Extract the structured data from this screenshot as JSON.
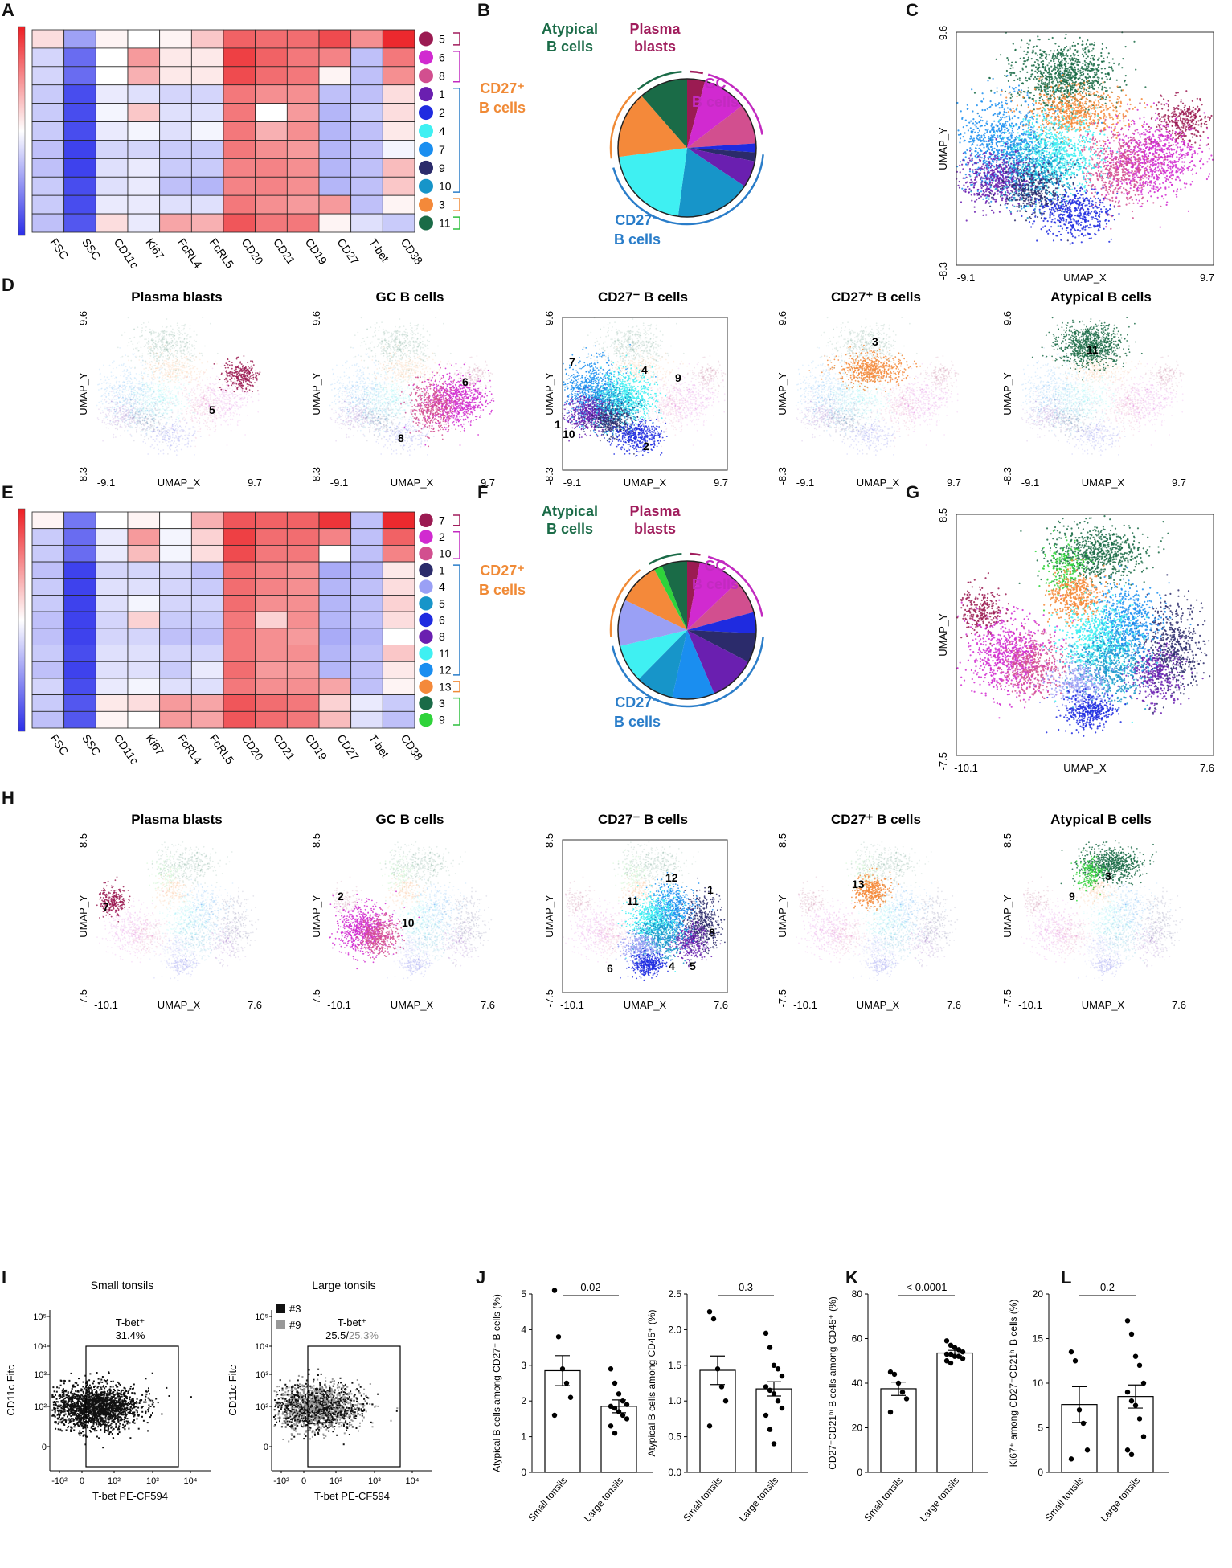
{
  "figure": {
    "panel_letters": [
      "A",
      "B",
      "C",
      "D",
      "E",
      "F",
      "G",
      "H",
      "I",
      "J",
      "K",
      "L"
    ],
    "markers": [
      "FSC",
      "SSC",
      "CD11c",
      "Ki67",
      "FcRL4",
      "FcRL5",
      "CD20",
      "CD21",
      "CD19",
      "CD27",
      "T-bet",
      "CD38"
    ],
    "colors": {
      "plasma": "#9b1b52",
      "gc": "#cc2bc7",
      "cd27neg": "#2a7dc9",
      "cd27pos": "#f4893a",
      "atypical": "#1a6b47",
      "atypical2": "#2fd33a",
      "text_plasma": "#a01c5c",
      "text_gc": "#c22ac0",
      "text_cd27neg": "#2a7dc9",
      "text_cd27pos": "#f08a36",
      "text_atyp": "#1a6b47"
    },
    "umap_x_label": "UMAP_X",
    "umap_y_label": "UMAP_Y"
  },
  "panelA": {
    "clusters": [
      {
        "id": "5",
        "color": "#9b1b52"
      },
      {
        "id": "6",
        "color": "#d12ad0"
      },
      {
        "id": "8",
        "color": "#d24f8f"
      },
      {
        "id": "1",
        "color": "#6a1fb0"
      },
      {
        "id": "2",
        "color": "#1f2be0"
      },
      {
        "id": "4",
        "color": "#3ff0f2"
      },
      {
        "id": "7",
        "color": "#1a8ef0"
      },
      {
        "id": "9",
        "color": "#2b2b6b"
      },
      {
        "id": "10",
        "color": "#1795c9"
      },
      {
        "id": "3",
        "color": "#f4893a"
      },
      {
        "id": "11",
        "color": "#1a6b47"
      }
    ],
    "heat": [
      [
        0.15,
        -0.45,
        0.05,
        0.0,
        0.05,
        0.25,
        0.7,
        0.65,
        0.65,
        0.8,
        0.5,
        0.95
      ],
      [
        -0.2,
        -0.7,
        0.0,
        0.45,
        0.1,
        0.1,
        0.85,
        0.7,
        0.6,
        0.55,
        -0.3,
        0.6
      ],
      [
        -0.2,
        -0.7,
        0.0,
        0.35,
        0.1,
        0.1,
        0.8,
        0.65,
        0.6,
        0.05,
        -0.3,
        0.5
      ],
      [
        -0.25,
        -0.85,
        -0.1,
        -0.15,
        -0.2,
        -0.2,
        0.6,
        0.5,
        0.5,
        -0.3,
        -0.3,
        0.15
      ],
      [
        -0.25,
        -0.85,
        -0.05,
        0.25,
        -0.15,
        -0.15,
        0.6,
        0.0,
        0.45,
        -0.35,
        -0.25,
        0.15
      ],
      [
        -0.25,
        -0.85,
        -0.1,
        -0.05,
        -0.15,
        -0.05,
        0.6,
        0.35,
        0.5,
        -0.35,
        -0.3,
        0.1
      ],
      [
        -0.3,
        -0.9,
        -0.2,
        -0.2,
        -0.25,
        -0.25,
        0.6,
        0.5,
        0.45,
        -0.35,
        -0.3,
        -0.05
      ],
      [
        -0.3,
        -0.9,
        -0.15,
        -0.1,
        -0.25,
        -0.25,
        0.55,
        0.55,
        0.5,
        -0.35,
        -0.3,
        0.3
      ],
      [
        -0.25,
        -0.85,
        -0.15,
        -0.1,
        -0.3,
        -0.35,
        0.55,
        0.55,
        0.5,
        -0.35,
        -0.3,
        0.25
      ],
      [
        -0.25,
        -0.85,
        -0.1,
        -0.1,
        -0.15,
        -0.15,
        0.6,
        0.5,
        0.45,
        0.45,
        -0.3,
        0.05
      ],
      [
        -0.3,
        -0.8,
        0.15,
        -0.1,
        0.4,
        0.35,
        0.75,
        0.6,
        0.6,
        0.05,
        -0.15,
        -0.25
      ]
    ],
    "brackets": [
      {
        "from": 0,
        "to": 0,
        "color": "#a01c5c"
      },
      {
        "from": 1,
        "to": 2,
        "color": "#c22ac0"
      },
      {
        "from": 3,
        "to": 8,
        "color": "#2a7dc9"
      },
      {
        "from": 9,
        "to": 9,
        "color": "#f08a36"
      },
      {
        "from": 10,
        "to": 10,
        "color": "#2fbf3f"
      }
    ]
  },
  "panelB": {
    "labels": [
      {
        "text": "Atypical",
        "color": "#1a6b47"
      },
      {
        "text": "B cells",
        "color": "#1a6b47"
      },
      {
        "text": "Plasma",
        "color": "#a01c5c"
      },
      {
        "text": "blasts",
        "color": "#a01c5c"
      },
      {
        "text": "GC",
        "color": "#c22ac0"
      },
      {
        "text": "B cells",
        "color": "#c22ac0"
      },
      {
        "text": "CD27⁺",
        "color": "#f08a36"
      },
      {
        "text": "B cells",
        "color": "#f08a36"
      },
      {
        "text": "CD27⁻",
        "color": "#2a7dc9"
      },
      {
        "text": "B cells",
        "color": "#2a7dc9"
      }
    ],
    "slices": [
      {
        "v": 4,
        "c": "#9b1b52"
      },
      {
        "v": 10,
        "c": "#d12ad0"
      },
      {
        "v": 9,
        "c": "#d24f8f"
      },
      {
        "v": 2,
        "c": "#1f2be0"
      },
      {
        "v": 2,
        "c": "#2b2b6b"
      },
      {
        "v": 6,
        "c": "#6a1fb0"
      },
      {
        "v": 17,
        "c": "#1795c9"
      },
      {
        "v": 20,
        "c": "#3ff0f2"
      },
      {
        "v": 15,
        "c": "#f4893a"
      },
      {
        "v": 11,
        "c": "#1a6b47"
      }
    ]
  },
  "panelC": {
    "xmin": "-9.1",
    "xmax": "9.7",
    "ymin": "-8.3",
    "ymax": "9.6"
  },
  "panelD": {
    "titles": [
      "Plasma blasts",
      "GC B cells",
      "CD27⁻ B cells",
      "CD27⁺ B cells",
      "Atypical B cells"
    ],
    "xmin": "-9.1",
    "xmax": "9.7",
    "ymin": "-8.3",
    "ymax": "9.6",
    "labels": [
      [
        "5"
      ],
      [
        "6",
        "8"
      ],
      [
        "7",
        "4",
        "9",
        "1",
        "10",
        "2"
      ],
      [
        "3"
      ],
      [
        "11"
      ]
    ]
  },
  "panelE": {
    "clusters": [
      {
        "id": "7",
        "color": "#9b1b52"
      },
      {
        "id": "2",
        "color": "#d12ad0"
      },
      {
        "id": "10",
        "color": "#d24f8f"
      },
      {
        "id": "1",
        "color": "#2b2b6b"
      },
      {
        "id": "4",
        "color": "#9aa0f5"
      },
      {
        "id": "5",
        "color": "#1795c9"
      },
      {
        "id": "6",
        "color": "#1f2be0"
      },
      {
        "id": "8",
        "color": "#6a1fb0"
      },
      {
        "id": "11",
        "color": "#3ff0f2"
      },
      {
        "id": "12",
        "color": "#1a8ef0"
      },
      {
        "id": "13",
        "color": "#f4893a"
      },
      {
        "id": "3",
        "color": "#1a6b47"
      },
      {
        "id": "9",
        "color": "#2fd33a"
      }
    ],
    "heat": [
      [
        0.05,
        -0.65,
        0.0,
        0.05,
        0.0,
        0.35,
        0.75,
        0.7,
        0.7,
        0.9,
        -0.3,
        0.95
      ],
      [
        -0.25,
        -0.7,
        -0.1,
        0.45,
        -0.05,
        0.2,
        0.85,
        0.65,
        0.65,
        0.55,
        -0.3,
        0.7
      ],
      [
        -0.25,
        -0.7,
        -0.1,
        0.3,
        -0.05,
        0.15,
        0.8,
        0.6,
        0.6,
        0.0,
        -0.3,
        0.55
      ],
      [
        -0.3,
        -0.9,
        -0.2,
        -0.2,
        -0.2,
        -0.3,
        0.65,
        0.55,
        0.5,
        -0.4,
        -0.35,
        0.1
      ],
      [
        -0.25,
        -0.9,
        -0.15,
        -0.15,
        -0.2,
        -0.25,
        0.65,
        0.55,
        0.5,
        -0.35,
        -0.3,
        0.15
      ],
      [
        -0.25,
        -0.9,
        -0.15,
        -0.05,
        -0.2,
        -0.2,
        0.65,
        0.5,
        0.5,
        -0.35,
        -0.3,
        0.2
      ],
      [
        -0.3,
        -0.9,
        -0.2,
        0.2,
        -0.25,
        -0.25,
        0.6,
        0.2,
        0.5,
        -0.35,
        -0.3,
        0.15
      ],
      [
        -0.3,
        -0.9,
        -0.2,
        -0.2,
        -0.3,
        -0.3,
        0.6,
        0.5,
        0.45,
        -0.4,
        -0.35,
        0.0
      ],
      [
        -0.25,
        -0.85,
        -0.15,
        -0.15,
        -0.2,
        -0.2,
        0.6,
        0.5,
        0.5,
        -0.35,
        -0.3,
        0.25
      ],
      [
        -0.3,
        -0.9,
        -0.15,
        -0.15,
        -0.25,
        -0.1,
        0.65,
        0.45,
        0.45,
        -0.35,
        -0.3,
        0.1
      ],
      [
        -0.2,
        -0.85,
        -0.1,
        -0.05,
        -0.15,
        -0.15,
        0.6,
        0.5,
        0.5,
        0.4,
        -0.3,
        0.05
      ],
      [
        -0.25,
        -0.8,
        0.1,
        0.15,
        0.45,
        0.4,
        0.75,
        0.65,
        0.6,
        0.2,
        -0.1,
        -0.25
      ],
      [
        -0.3,
        -0.8,
        0.05,
        0.0,
        0.45,
        0.4,
        0.75,
        0.65,
        0.6,
        0.3,
        -0.15,
        -0.3
      ]
    ],
    "brackets": [
      {
        "from": 0,
        "to": 0,
        "color": "#a01c5c"
      },
      {
        "from": 1,
        "to": 2,
        "color": "#c22ac0"
      },
      {
        "from": 3,
        "to": 9,
        "color": "#2a7dc9"
      },
      {
        "from": 10,
        "to": 10,
        "color": "#f08a36"
      },
      {
        "from": 11,
        "to": 12,
        "color": "#2fbf3f"
      }
    ]
  },
  "panelF": {
    "labels": [
      {
        "text": "Atypical",
        "color": "#1a6b47"
      },
      {
        "text": "B cells",
        "color": "#1a6b47"
      },
      {
        "text": "Plasma",
        "color": "#a01c5c"
      },
      {
        "text": "blasts",
        "color": "#a01c5c"
      },
      {
        "text": "GC",
        "color": "#c22ac0"
      },
      {
        "text": "B cells",
        "color": "#c22ac0"
      },
      {
        "text": "CD27⁺",
        "color": "#f08a36"
      },
      {
        "text": "B cells",
        "color": "#f08a36"
      },
      {
        "text": "CD27⁻",
        "color": "#2a7dc9"
      },
      {
        "text": "B cells",
        "color": "#2a7dc9"
      }
    ],
    "slices": [
      {
        "v": 3,
        "c": "#9b1b52"
      },
      {
        "v": 10,
        "c": "#d12ad0"
      },
      {
        "v": 8,
        "c": "#d24f8f"
      },
      {
        "v": 5,
        "c": "#1f2be0"
      },
      {
        "v": 7,
        "c": "#2b2b6b"
      },
      {
        "v": 11,
        "c": "#6a1fb0"
      },
      {
        "v": 10,
        "c": "#1a8ef0"
      },
      {
        "v": 9,
        "c": "#1795c9"
      },
      {
        "v": 9,
        "c": "#3ff0f2"
      },
      {
        "v": 11,
        "c": "#9aa0f5"
      },
      {
        "v": 10,
        "c": "#f4893a"
      },
      {
        "v": 2,
        "c": "#2fd33a"
      },
      {
        "v": 6,
        "c": "#1a6b47"
      }
    ]
  },
  "panelG": {
    "xmin": "-10.1",
    "xmax": "7.6",
    "ymin": "-7.5",
    "ymax": "8.5"
  },
  "panelH": {
    "titles": [
      "Plasma blasts",
      "GC B cells",
      "CD27⁻ B cells",
      "CD27⁺ B cells",
      "Atypical B cells"
    ],
    "xmin": "-10.1",
    "xmax": "7.6",
    "ymin": "-7.5",
    "ymax": "8.5",
    "labels": [
      [
        "7"
      ],
      [
        "2",
        "10"
      ],
      [
        "12",
        "11",
        "1",
        "8",
        "6",
        "4",
        "5"
      ],
      [
        "13"
      ],
      [
        "3",
        "9"
      ]
    ]
  },
  "panelI": {
    "plot1": {
      "title": "Small tonsils",
      "gate_label": "T-bet⁺",
      "gate_value": "31.4%"
    },
    "plot2": {
      "title": "Large tonsils",
      "gate_label": "T-bet⁺",
      "gate_value_a": "25.5/",
      "gate_value_b": "25.3%",
      "legend": [
        "#3",
        "#9"
      ]
    },
    "ylabel": "CD11c Fitc",
    "xlabel": "T-bet PE-CF594",
    "yticks": [
      "10⁵",
      "10⁴",
      "10³",
      "10²",
      "0"
    ],
    "xticks": [
      "-10²",
      "0",
      "10²",
      "10³",
      "10⁴"
    ]
  },
  "chart_data": [
    {
      "type": "bar",
      "panel": "J-left",
      "title": "",
      "categories": [
        "Small tonsils",
        "Large tonsils"
      ],
      "values": [
        2.85,
        1.85
      ],
      "sem": [
        0.42,
        0.18
      ],
      "points": [
        [
          5.1,
          3.8,
          2.9,
          2.5,
          2.1,
          1.6
        ],
        [
          2.9,
          2.5,
          2.2,
          2.0,
          1.9,
          1.85,
          1.8,
          1.7,
          1.6,
          1.5,
          1.3,
          1.1
        ]
      ],
      "ylabel": "Atypical B cells among CD27⁻ B cells (%)",
      "ylim": [
        0,
        5
      ],
      "yticks": [
        "0",
        "1",
        "2",
        "3",
        "4",
        "5"
      ],
      "p": "0.02"
    },
    {
      "type": "bar",
      "panel": "J-right",
      "title": "",
      "categories": [
        "Small tonsils",
        "Large tonsils"
      ],
      "values": [
        1.43,
        1.17
      ],
      "sem": [
        0.2,
        0.1
      ],
      "points": [
        [
          2.25,
          2.15,
          1.45,
          1.2,
          1.0,
          0.65
        ],
        [
          1.95,
          1.75,
          1.5,
          1.45,
          1.35,
          1.2,
          1.15,
          1.1,
          1.0,
          0.9,
          0.8,
          0.6,
          0.4
        ]
      ],
      "ylabel": "Atypical B cells among CD45⁺ (%)",
      "ylim": [
        0,
        2.5
      ],
      "yticks": [
        "0.0",
        "0.5",
        "1.0",
        "1.5",
        "2.0",
        "2.5"
      ],
      "p": "0.3"
    },
    {
      "type": "bar",
      "panel": "K",
      "title": "",
      "categories": [
        "Small tonsils",
        "Large tonsils"
      ],
      "values": [
        37.5,
        53.5
      ],
      "sem": [
        3.0,
        1.2
      ],
      "points": [
        [
          45,
          44,
          40,
          36,
          33,
          27
        ],
        [
          59,
          57,
          56,
          55,
          54,
          53,
          53,
          52,
          52,
          51,
          50,
          49
        ]
      ],
      "ylabel": "CD27⁻CD21ʰⁱ B cells among CD45⁺ (%)",
      "ylim": [
        0,
        80
      ],
      "yticks": [
        "0",
        "20",
        "40",
        "60",
        "80"
      ],
      "p": "< 0.0001"
    },
    {
      "type": "bar",
      "panel": "L",
      "title": "",
      "categories": [
        "Small tonsils",
        "Large tonsils"
      ],
      "values": [
        7.6,
        8.5
      ],
      "sem": [
        2.0,
        1.3
      ],
      "points": [
        [
          13.5,
          12.5,
          7.0,
          5.5,
          2.5,
          1.5
        ],
        [
          17,
          15.5,
          13,
          12,
          10,
          9,
          8,
          7.5,
          6,
          4,
          2.5,
          2
        ]
      ],
      "ylabel": "Ki67⁺ among CD27⁻CD21ʰⁱ B cells (%)",
      "ylim": [
        0,
        20
      ],
      "yticks": [
        "0",
        "5",
        "10",
        "15",
        "20"
      ],
      "p": "0.2"
    }
  ]
}
